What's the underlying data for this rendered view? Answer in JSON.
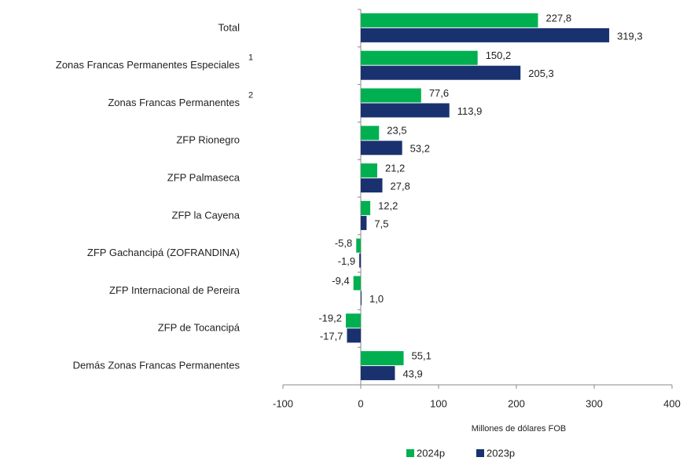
{
  "chart_data": {
    "type": "hbar",
    "categories": [
      "Total",
      "Zonas Francas Permanentes Especiales",
      "Zonas Francas Permanentes",
      "ZFP Rionegro",
      "ZFP Palmaseca",
      "ZFP la Cayena",
      "ZFP Gachancipá (ZOFRANDINA)",
      "ZFP Internacional de Pereira",
      "ZFP de Tocancipá",
      "Demás Zonas Francas Permanentes"
    ],
    "category_notes": [
      null,
      "1",
      "2",
      null,
      null,
      null,
      null,
      null,
      null,
      null
    ],
    "series": [
      {
        "name": "2024p",
        "color": "#00b050",
        "values": [
          227.8,
          150.2,
          77.6,
          23.5,
          21.2,
          12.2,
          -5.8,
          -9.4,
          -19.2,
          55.1
        ],
        "value_labels": [
          "227,8",
          "150,2",
          "77,6",
          "23,5",
          "21,2",
          "12,2",
          "-5,8",
          "-9,4",
          "-19,2",
          "55,1"
        ]
      },
      {
        "name": "2023p",
        "color": "#1a3170",
        "values": [
          319.3,
          205.3,
          113.9,
          53.2,
          27.8,
          7.5,
          -1.9,
          1.0,
          -17.7,
          43.9
        ],
        "value_labels": [
          "319,3",
          "205,3",
          "113,9",
          "53,2",
          "27,8",
          "7,5",
          "-1,9",
          "1,0",
          "-17,7",
          "43,9"
        ]
      }
    ],
    "xlim": [
      -100,
      400
    ],
    "xticks": [
      -100,
      0,
      100,
      200,
      300,
      400
    ],
    "xlabel": "Millones de dólares FOB",
    "legend": "bottom"
  }
}
